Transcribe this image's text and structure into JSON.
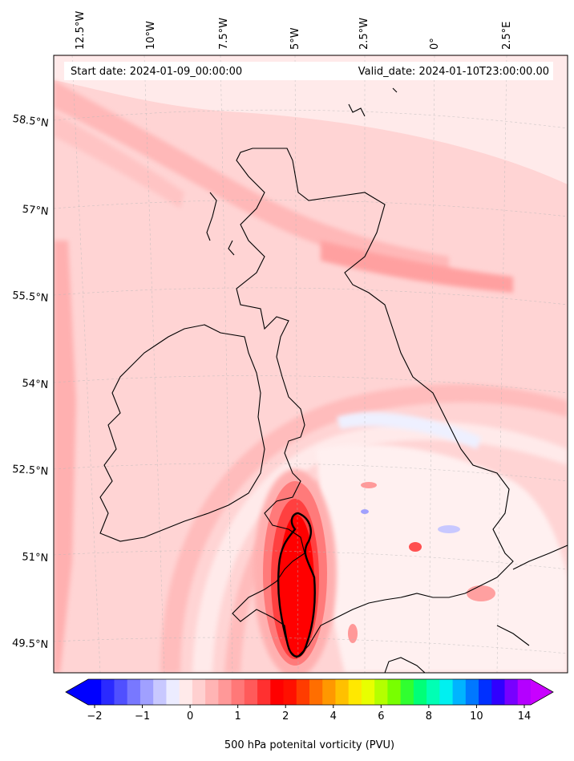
{
  "map": {
    "start_label": "Start date: 2024-01-09_00:00:00",
    "valid_label": "Valid_date: 2024-01-10T23:00:00.00",
    "lon_labels": [
      "12.5°W",
      "10°W",
      "7.5°W",
      "5°W",
      "2.5°W",
      "0°",
      "2.5°E"
    ],
    "lat_labels": [
      "58.5°N",
      "57°N",
      "55.5°N",
      "54°N",
      "52.5°N",
      "51°N",
      "49.5°N"
    ]
  },
  "colorbar": {
    "title": "500 hPa potenital vorticity (PVU)",
    "tick_labels": [
      "−2",
      "−1",
      "0",
      "1",
      "2",
      "4",
      "6",
      "8",
      "10",
      "14"
    ],
    "colors": [
      "#0000ff",
      "#2a2aff",
      "#5050ff",
      "#7878ff",
      "#a0a0ff",
      "#c8c8ff",
      "#ececff",
      "#ffeaea",
      "#ffd0d0",
      "#ffb4b4",
      "#ff9898",
      "#ff7878",
      "#ff5a5a",
      "#ff3030",
      "#ff0000",
      "#ff1000",
      "#ff3c00",
      "#ff6e00",
      "#ff9800",
      "#ffc000",
      "#ffe800",
      "#e8ff00",
      "#b4ff00",
      "#78ff00",
      "#30ff30",
      "#00ff78",
      "#00ffb4",
      "#00f0f0",
      "#00b4ff",
      "#0078ff",
      "#0030ff",
      "#3000ff",
      "#7800ff",
      "#b400ff"
    ],
    "under_color": "#0000ff",
    "over_color": "#c800ff"
  }
}
